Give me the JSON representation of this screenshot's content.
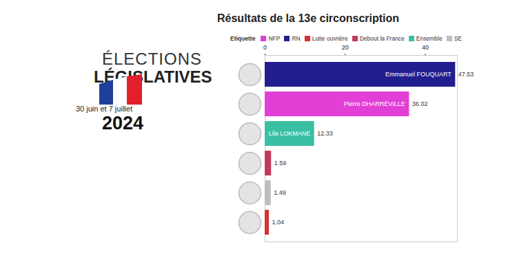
{
  "banner": {
    "line1": "ÉLECTIONS",
    "line2": "LÉGISLATIVES",
    "dates": "30 juin et 7 juillet",
    "year": "2024"
  },
  "chart_data": {
    "type": "bar",
    "title": "Résultats de la 13e circonscription",
    "orientation": "horizontal",
    "legend": "top",
    "legend_title": "Etiquette",
    "categories": [
      "Emmanuel FOUQUART",
      "Pierre DHARRÉVILLE",
      "Lila LOKMANE",
      null,
      null,
      null
    ],
    "series": [
      {
        "name": "NFP",
        "color": "#e23fd6",
        "values": [
          null,
          36.02,
          null,
          null,
          null,
          null
        ]
      },
      {
        "name": "RN",
        "color": "#221e8f",
        "values": [
          47.53,
          null,
          null,
          null,
          null,
          null
        ]
      },
      {
        "name": "Lutte ouvrière",
        "color": "#d7302f",
        "values": [
          null,
          null,
          null,
          null,
          null,
          1.04
        ]
      },
      {
        "name": "Debout la France",
        "color": "#c23a5c",
        "values": [
          null,
          null,
          null,
          1.59,
          null,
          null
        ]
      },
      {
        "name": "Ensemble",
        "color": "#3bbfa4",
        "values": [
          null,
          null,
          12.33,
          null,
          null,
          null
        ]
      },
      {
        "name": "SE",
        "color": "#bdbdbd",
        "values": [
          null,
          null,
          null,
          null,
          1.49,
          null
        ]
      }
    ],
    "xlim": [
      0,
      48
    ],
    "xticks": [
      0,
      20,
      40
    ],
    "grid": false,
    "data_labels": true,
    "tick_labels": "x"
  }
}
